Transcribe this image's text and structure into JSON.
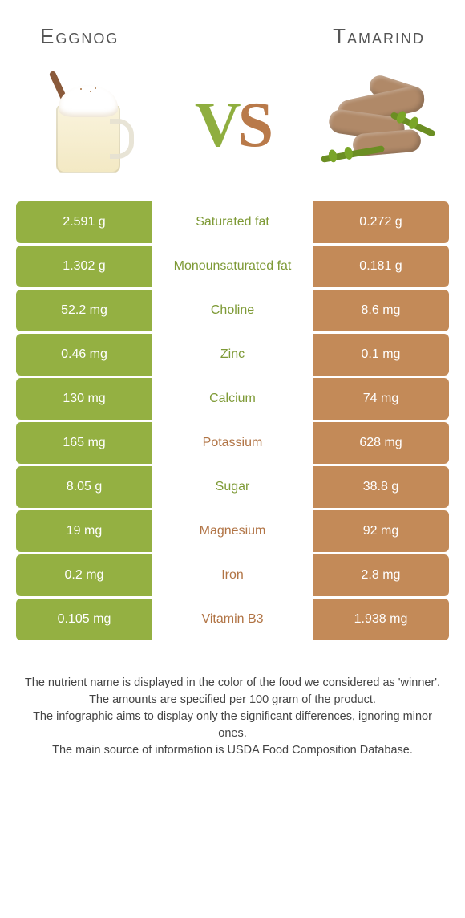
{
  "header": {
    "left_title": "Eggnog",
    "right_title": "Tamarind"
  },
  "vs": {
    "v": "V",
    "s": "S"
  },
  "colors": {
    "left_bar": "#94b042",
    "right_bar": "#c38a58",
    "left_text": "#7e9a36",
    "right_text": "#b17445",
    "background": "#ffffff"
  },
  "comparison": {
    "type": "table",
    "columns": [
      "left_value",
      "nutrient",
      "right_value"
    ],
    "left_label": "Eggnog",
    "right_label": "Tamarind",
    "rows": [
      {
        "left": "2.591 g",
        "name": "Saturated fat",
        "right": "0.272 g",
        "winner": "left"
      },
      {
        "left": "1.302 g",
        "name": "Monounsaturated fat",
        "right": "0.181 g",
        "winner": "left"
      },
      {
        "left": "52.2 mg",
        "name": "Choline",
        "right": "8.6 mg",
        "winner": "left"
      },
      {
        "left": "0.46 mg",
        "name": "Zinc",
        "right": "0.1 mg",
        "winner": "left"
      },
      {
        "left": "130 mg",
        "name": "Calcium",
        "right": "74 mg",
        "winner": "left"
      },
      {
        "left": "165 mg",
        "name": "Potassium",
        "right": "628 mg",
        "winner": "right"
      },
      {
        "left": "8.05 g",
        "name": "Sugar",
        "right": "38.8 g",
        "winner": "left"
      },
      {
        "left": "19 mg",
        "name": "Magnesium",
        "right": "92 mg",
        "winner": "right"
      },
      {
        "left": "0.2 mg",
        "name": "Iron",
        "right": "2.8 mg",
        "winner": "right"
      },
      {
        "left": "0.105 mg",
        "name": "Vitamin B3",
        "right": "1.938 mg",
        "winner": "right"
      }
    ]
  },
  "footer": {
    "line1": "The nutrient name is displayed in the color of the food we considered as 'winner'.",
    "line2": "The amounts are specified per 100 gram of the product.",
    "line3": "The infographic aims to display only the significant differences, ignoring minor ones.",
    "line4": "The main source of information is USDA Food Composition Database."
  }
}
